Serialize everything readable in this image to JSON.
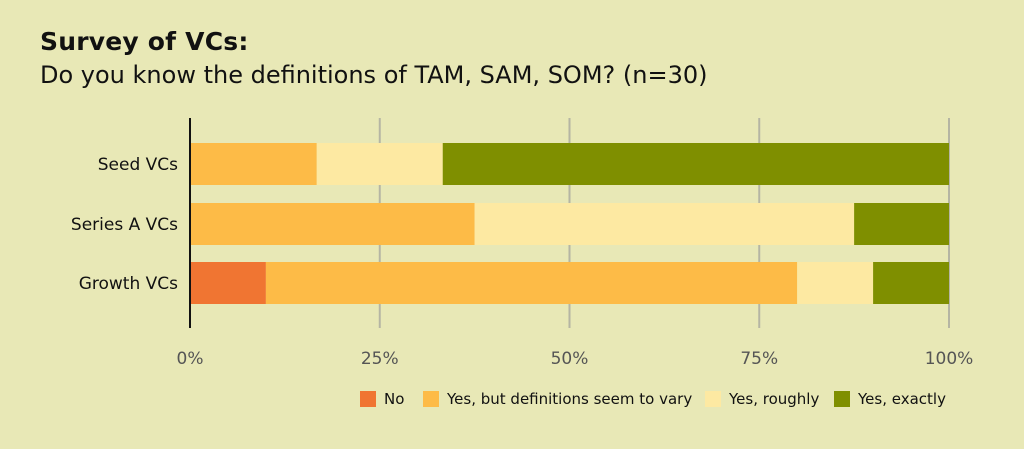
{
  "header": {
    "title": "Survey of VCs:",
    "subtitle": "Do you know the definitions of TAM, SAM, SOM? (n=30)"
  },
  "colors": {
    "background": "#e8e8b6",
    "grid": "#b5b5a3",
    "axis": "#111111"
  },
  "chart_data": {
    "type": "bar",
    "orientation": "horizontal",
    "stacked": true,
    "normalized_percent": true,
    "categories": [
      "Seed VCs",
      "Series A VCs",
      "Growth VCs"
    ],
    "series": [
      {
        "name": "No",
        "color": "#f07532",
        "values": [
          0,
          0,
          10
        ]
      },
      {
        "name": "Yes, but definitions seem to vary",
        "color": "#fdbb47",
        "values": [
          16.7,
          37.5,
          70
        ]
      },
      {
        "name": "Yes, roughly",
        "color": "#fde9a2",
        "values": [
          16.6,
          50,
          10
        ]
      },
      {
        "name": "Yes, exactly",
        "color": "#7f8f00",
        "values": [
          66.7,
          12.5,
          10
        ]
      }
    ],
    "x_ticks": [
      "0%",
      "25%",
      "50%",
      "75%",
      "100%"
    ],
    "xlim": [
      0,
      100
    ],
    "grid": true,
    "legend_position": "bottom-right"
  }
}
